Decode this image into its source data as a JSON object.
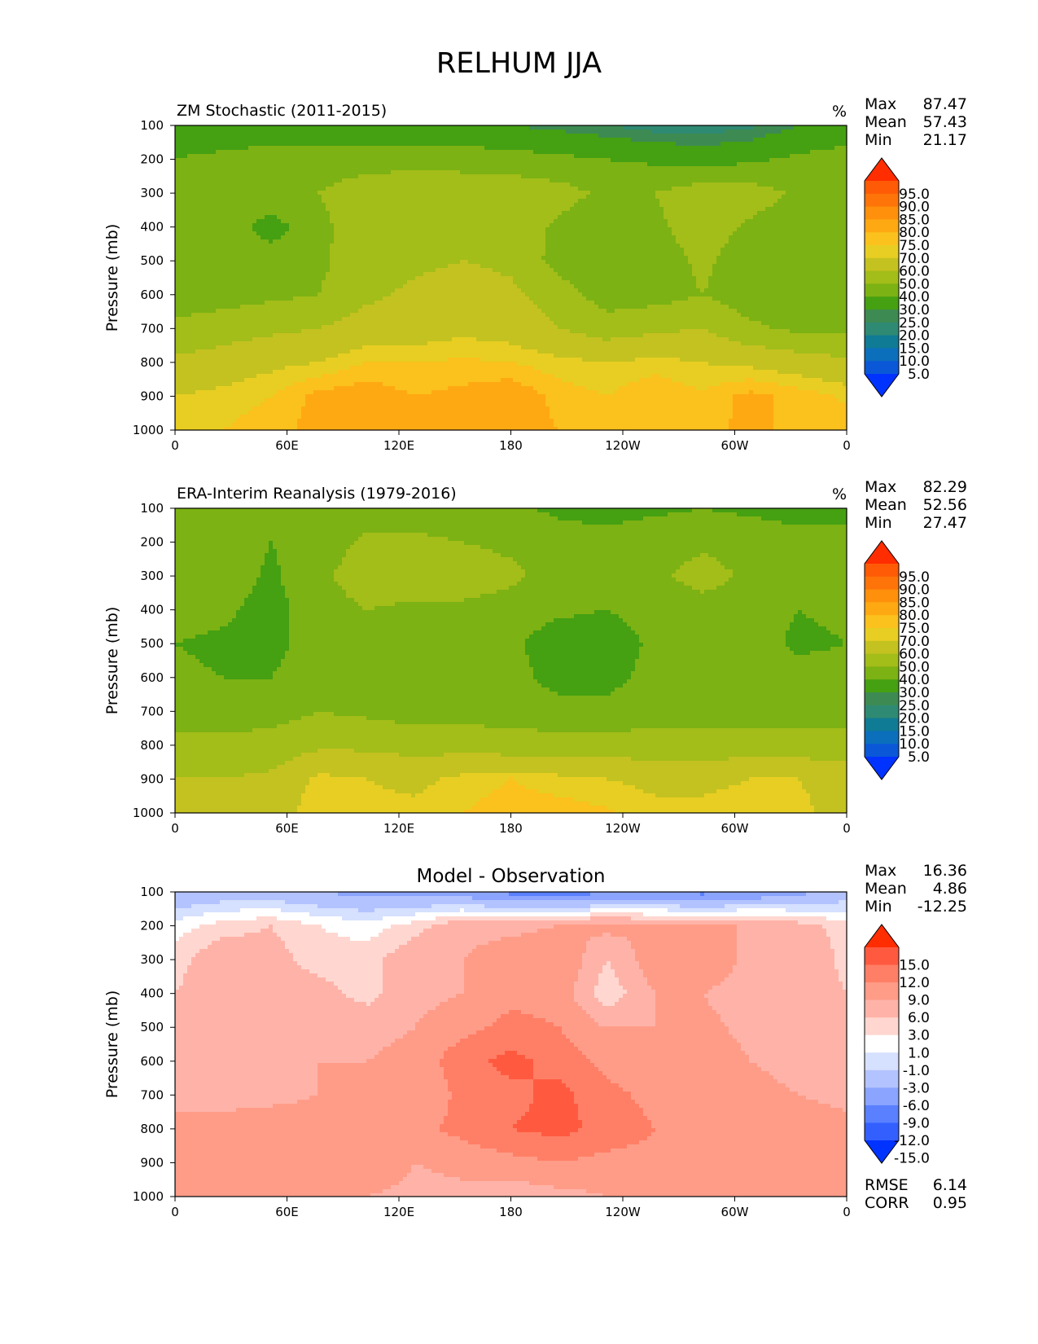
{
  "title": "RELHUM JJA",
  "colors": {
    "abs_levels": [
      "#0033ff",
      "#0a58d8",
      "#0b6fbc",
      "#107b95",
      "#2f8a73",
      "#3d8b52",
      "#45a012",
      "#7cb213",
      "#a3bd19",
      "#c4c220",
      "#e8ce22",
      "#fbc11d",
      "#ffa912",
      "#ff900c",
      "#ff7408",
      "#ff5a06",
      "#ff2d00"
    ],
    "diff_levels": [
      "#0033ff",
      "#335fff",
      "#5a80ff",
      "#8aa4ff",
      "#b3c3ff",
      "#d6e0ff",
      "#ffffff",
      "#ffd7d0",
      "#ffb3a8",
      "#ff9c88",
      "#ff7f66",
      "#ff5a40",
      "#ff2d00"
    ]
  },
  "chart_data": [
    {
      "type": "heatmap",
      "title": "ZM Stochastic (2011-2015)",
      "units": "%",
      "ylabel": "Pressure (mb)",
      "x_ticks": [
        "0",
        "60E",
        "120E",
        "180",
        "120W",
        "60W",
        "0"
      ],
      "y_ticks": [
        "100",
        "200",
        "300",
        "400",
        "500",
        "600",
        "700",
        "800",
        "900",
        "1000"
      ],
      "ylim": [
        1000,
        100
      ],
      "colorbar_labels": [
        "95.0",
        "90.0",
        "85.0",
        "80.0",
        "75.0",
        "70.0",
        "60.0",
        "50.0",
        "40.0",
        "30.0",
        "25.0",
        "20.0",
        "15.0",
        "10.0",
        "5.0"
      ],
      "stats": [
        {
          "label": "Max",
          "value": "87.47"
        },
        {
          "label": "Mean",
          "value": "57.43"
        },
        {
          "label": "Min",
          "value": "21.17"
        }
      ],
      "grid": [
        [
          35,
          34,
          32,
          32,
          30,
          31,
          32,
          30,
          28,
          25,
          22,
          21,
          24,
          30,
          34
        ],
        [
          40,
          42,
          45,
          46,
          46,
          46,
          45,
          44,
          42,
          40,
          38,
          36,
          38,
          42,
          44
        ],
        [
          46,
          50,
          48,
          50,
          55,
          58,
          58,
          57,
          54,
          48,
          50,
          56,
          55,
          48,
          50
        ],
        [
          46,
          46,
          35,
          48,
          55,
          58,
          58,
          56,
          48,
          42,
          48,
          55,
          48,
          44,
          44
        ],
        [
          44,
          45,
          46,
          48,
          56,
          58,
          60,
          58,
          46,
          42,
          45,
          52,
          44,
          42,
          44
        ],
        [
          45,
          46,
          48,
          50,
          58,
          62,
          65,
          62,
          55,
          45,
          46,
          50,
          44,
          42,
          44
        ],
        [
          52,
          55,
          58,
          60,
          65,
          65,
          68,
          66,
          60,
          55,
          58,
          60,
          52,
          48,
          48
        ],
        [
          62,
          65,
          68,
          70,
          75,
          75,
          76,
          75,
          72,
          70,
          72,
          70,
          68,
          65,
          62
        ],
        [
          70,
          72,
          75,
          82,
          84,
          80,
          82,
          85,
          78,
          75,
          80,
          76,
          82,
          78,
          74
        ],
        [
          72,
          75,
          78,
          82,
          82,
          80,
          82,
          84,
          80,
          76,
          80,
          78,
          82,
          78,
          78
        ]
      ]
    },
    {
      "type": "heatmap",
      "title": "ERA-Interim Reanalysis (1979-2016)",
      "units": "%",
      "ylabel": "Pressure (mb)",
      "x_ticks": [
        "0",
        "60E",
        "120E",
        "180",
        "120W",
        "60W",
        "0"
      ],
      "y_ticks": [
        "100",
        "200",
        "300",
        "400",
        "500",
        "600",
        "700",
        "800",
        "900",
        "1000"
      ],
      "ylim": [
        1000,
        100
      ],
      "colorbar_labels": [
        "95.0",
        "90.0",
        "85.0",
        "80.0",
        "75.0",
        "70.0",
        "60.0",
        "50.0",
        "40.0",
        "30.0",
        "25.0",
        "20.0",
        "15.0",
        "10.0",
        "5.0"
      ],
      "stats": [
        {
          "label": "Max",
          "value": "82.29"
        },
        {
          "label": "Mean",
          "value": "52.56"
        },
        {
          "label": "Min",
          "value": "27.47"
        }
      ],
      "grid": [
        [
          42,
          42,
          40,
          42,
          45,
          45,
          44,
          42,
          38,
          36,
          38,
          40,
          38,
          36,
          36
        ],
        [
          46,
          46,
          40,
          45,
          52,
          52,
          50,
          48,
          44,
          44,
          46,
          48,
          46,
          44,
          44
        ],
        [
          48,
          46,
          38,
          48,
          55,
          56,
          55,
          52,
          46,
          44,
          48,
          54,
          48,
          46,
          46
        ],
        [
          44,
          42,
          36,
          46,
          50,
          48,
          48,
          46,
          42,
          40,
          44,
          46,
          44,
          40,
          42
        ],
        [
          40,
          38,
          36,
          46,
          44,
          42,
          42,
          42,
          34,
          34,
          42,
          44,
          44,
          38,
          40
        ],
        [
          42,
          40,
          40,
          46,
          45,
          44,
          44,
          44,
          36,
          36,
          44,
          46,
          44,
          44,
          44
        ],
        [
          46,
          46,
          46,
          50,
          48,
          46,
          46,
          46,
          44,
          44,
          46,
          46,
          46,
          46,
          46
        ],
        [
          52,
          52,
          54,
          58,
          58,
          56,
          56,
          54,
          54,
          54,
          54,
          54,
          54,
          54,
          54
        ],
        [
          60,
          60,
          62,
          72,
          70,
          68,
          72,
          75,
          72,
          70,
          68,
          68,
          70,
          70,
          66
        ],
        [
          62,
          64,
          66,
          74,
          72,
          72,
          75,
          78,
          78,
          76,
          72,
          72,
          74,
          72,
          66
        ]
      ]
    },
    {
      "type": "heatmap",
      "title": "Model - Observation",
      "units": "",
      "ylabel": "Pressure (mb)",
      "x_ticks": [
        "0",
        "60E",
        "120E",
        "180",
        "120W",
        "60W",
        "0"
      ],
      "y_ticks": [
        "100",
        "200",
        "300",
        "400",
        "500",
        "600",
        "700",
        "800",
        "900",
        "1000"
      ],
      "ylim": [
        1000,
        100
      ],
      "colorbar_labels": [
        "15.0",
        "12.0",
        "9.0",
        "6.0",
        "3.0",
        "1.0",
        "-1.0",
        "-3.0",
        "-6.0",
        "-9.0",
        "-12.0",
        "-15.0"
      ],
      "stats": [
        {
          "label": "Max",
          "value": "16.36"
        },
        {
          "label": "Mean",
          "value": "4.86"
        },
        {
          "label": "Min",
          "value": "-12.25"
        }
      ],
      "extra_stats": [
        {
          "label": "RMSE",
          "value": "6.14"
        },
        {
          "label": "CORR",
          "value": "0.95"
        }
      ],
      "grid": [
        [
          -6,
          -5,
          -5,
          -6,
          -7,
          -7,
          -8,
          -10,
          -10,
          -10,
          -9,
          -10,
          -9,
          -7,
          -5
        ],
        [
          0,
          2,
          3,
          1,
          0,
          2,
          5,
          5,
          6,
          7,
          6,
          6,
          6,
          4,
          2
        ],
        [
          2,
          5,
          4,
          2,
          2,
          5,
          6,
          8,
          9,
          3,
          8,
          9,
          5,
          6,
          2
        ],
        [
          3,
          5,
          4,
          4,
          2,
          5,
          6,
          8,
          8,
          1,
          6,
          6,
          4,
          5,
          3
        ],
        [
          4,
          4,
          5,
          6,
          5,
          6,
          8,
          10,
          9,
          6,
          6,
          7,
          5,
          4,
          4
        ],
        [
          4,
          4,
          4,
          6,
          6,
          7,
          11,
          13,
          11,
          8,
          7,
          8,
          6,
          5,
          4
        ],
        [
          5,
          5,
          5,
          6,
          7,
          6,
          10,
          11,
          13,
          10,
          8,
          8,
          7,
          6,
          5
        ],
        [
          7,
          7,
          8,
          8,
          9,
          8,
          10,
          12,
          13,
          11,
          9,
          9,
          8,
          8,
          7
        ],
        [
          8,
          8,
          7,
          7,
          9,
          6,
          7,
          8,
          9,
          8,
          8,
          9,
          8,
          9,
          8
        ],
        [
          9,
          9,
          8,
          6,
          6,
          5,
          5,
          4,
          5,
          6,
          7,
          6,
          6,
          7,
          8
        ]
      ]
    }
  ]
}
